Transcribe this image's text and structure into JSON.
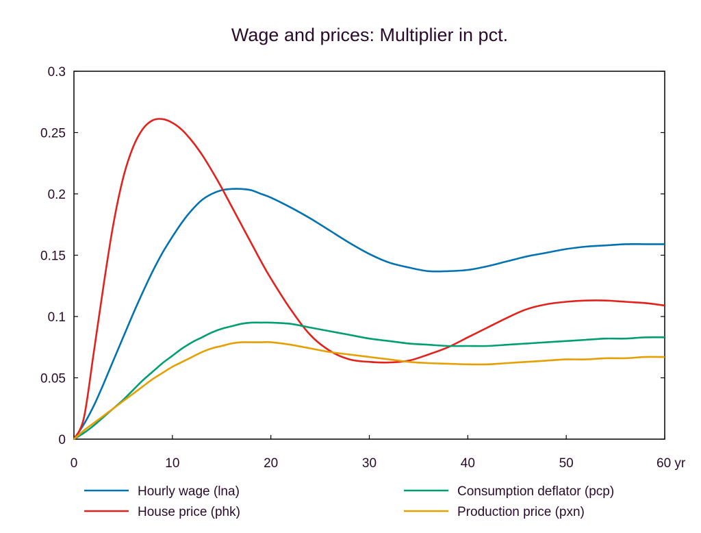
{
  "chart_data": {
    "type": "line",
    "title": "Wage and prices: Multiplier in pct.",
    "xlabel": "",
    "ylabel": "",
    "x_unit_label": "yr",
    "xlim": [
      0,
      60
    ],
    "ylim": [
      0,
      0.3
    ],
    "x_ticks": [
      0,
      10,
      20,
      30,
      40,
      50,
      60
    ],
    "x_tick_labels": [
      "0",
      "10",
      "20",
      "30",
      "40",
      "50",
      "60 yr"
    ],
    "y_ticks": [
      0,
      0.05,
      0.1,
      0.15,
      0.2,
      0.25,
      0.3
    ],
    "y_tick_labels": [
      "0",
      "0.05",
      "0.1",
      "0.15",
      "0.2",
      "0.25",
      "0.3"
    ],
    "grid": false,
    "legend_position": "bottom",
    "x": [
      0,
      1,
      2,
      3,
      4,
      5,
      6,
      7,
      8,
      9,
      10,
      11,
      12,
      13,
      14,
      15,
      16,
      17,
      18,
      19,
      20,
      22,
      24,
      26,
      28,
      30,
      32,
      34,
      36,
      38,
      40,
      42,
      44,
      46,
      48,
      50,
      52,
      54,
      56,
      58,
      60
    ],
    "series": [
      {
        "name": "Hourly wage (lna)",
        "color": "#0072b2",
        "values": [
          0,
          0.012,
          0.027,
          0.045,
          0.064,
          0.083,
          0.102,
          0.12,
          0.137,
          0.152,
          0.165,
          0.177,
          0.187,
          0.195,
          0.2,
          0.203,
          0.204,
          0.204,
          0.203,
          0.2,
          0.197,
          0.189,
          0.18,
          0.17,
          0.16,
          0.151,
          0.144,
          0.14,
          0.137,
          0.137,
          0.138,
          0.141,
          0.145,
          0.149,
          0.152,
          0.155,
          0.157,
          0.158,
          0.159,
          0.159,
          0.159
        ]
      },
      {
        "name": "House price (phk)",
        "color": "#e3211c",
        "values": [
          0,
          0.017,
          0.07,
          0.125,
          0.175,
          0.213,
          0.238,
          0.253,
          0.26,
          0.261,
          0.258,
          0.252,
          0.243,
          0.232,
          0.219,
          0.205,
          0.19,
          0.175,
          0.16,
          0.145,
          0.131,
          0.106,
          0.085,
          0.072,
          0.065,
          0.063,
          0.0625,
          0.064,
          0.069,
          0.075,
          0.083,
          0.091,
          0.099,
          0.106,
          0.11,
          0.112,
          0.113,
          0.113,
          0.112,
          0.111,
          0.109
        ]
      },
      {
        "name": "Consumption deflator (pcp)",
        "color": "#009e73",
        "values": [
          0,
          0.005,
          0.011,
          0.018,
          0.025,
          0.032,
          0.04,
          0.048,
          0.055,
          0.062,
          0.068,
          0.074,
          0.079,
          0.083,
          0.087,
          0.09,
          0.092,
          0.094,
          0.095,
          0.095,
          0.095,
          0.094,
          0.091,
          0.088,
          0.085,
          0.082,
          0.08,
          0.078,
          0.077,
          0.076,
          0.076,
          0.076,
          0.077,
          0.078,
          0.079,
          0.08,
          0.081,
          0.082,
          0.082,
          0.083,
          0.083
        ]
      },
      {
        "name": "Production price (pxn)",
        "color": "#e69f00",
        "values": [
          0,
          0.007,
          0.013,
          0.019,
          0.025,
          0.031,
          0.037,
          0.043,
          0.049,
          0.054,
          0.059,
          0.063,
          0.067,
          0.071,
          0.074,
          0.076,
          0.078,
          0.079,
          0.079,
          0.079,
          0.079,
          0.077,
          0.074,
          0.071,
          0.069,
          0.067,
          0.065,
          0.063,
          0.062,
          0.0615,
          0.061,
          0.061,
          0.062,
          0.063,
          0.064,
          0.065,
          0.065,
          0.066,
          0.066,
          0.067,
          0.067
        ]
      }
    ]
  }
}
